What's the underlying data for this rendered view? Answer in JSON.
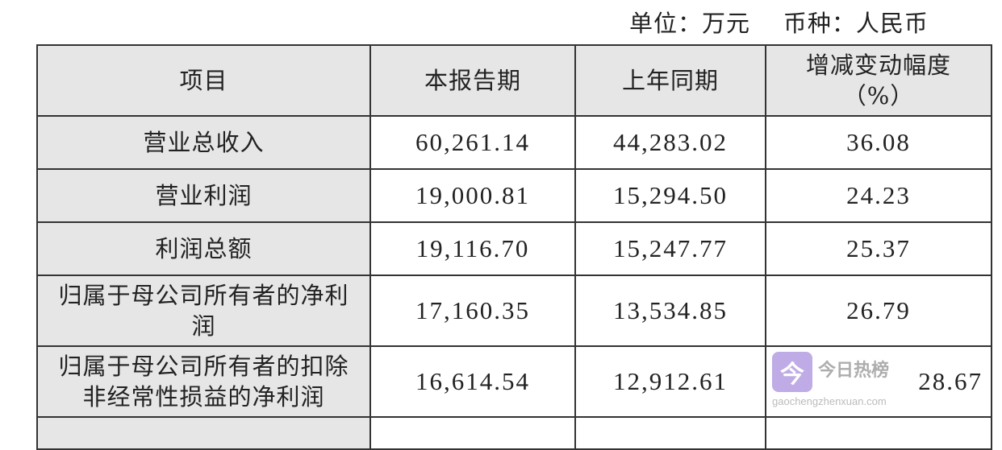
{
  "unit_line": "单位：万元    币种：人民币",
  "table": {
    "headers": [
      "项目",
      "本报告期",
      "上年同期",
      "增减变动幅度（%）"
    ],
    "rows": [
      [
        "营业总收入",
        "60,261.14",
        "44,283.02",
        "36.08"
      ],
      [
        "营业利润",
        "19,000.81",
        "15,294.50",
        "24.23"
      ],
      [
        "利润总额",
        "19,116.70",
        "15,247.77",
        "25.37"
      ],
      [
        "归属于母公司所有者的净利润",
        "17,160.35",
        "13,534.85",
        "26.79"
      ],
      [
        "归属于母公司所有者的扣除非经常性损益的净利润",
        "16,614.54",
        "12,912.61",
        "28.67"
      ]
    ]
  },
  "watermark": {
    "logo_char": "今",
    "name": "今日热榜",
    "url": "gaochengzhenxuan.com",
    "color": "#b9a3e3"
  }
}
